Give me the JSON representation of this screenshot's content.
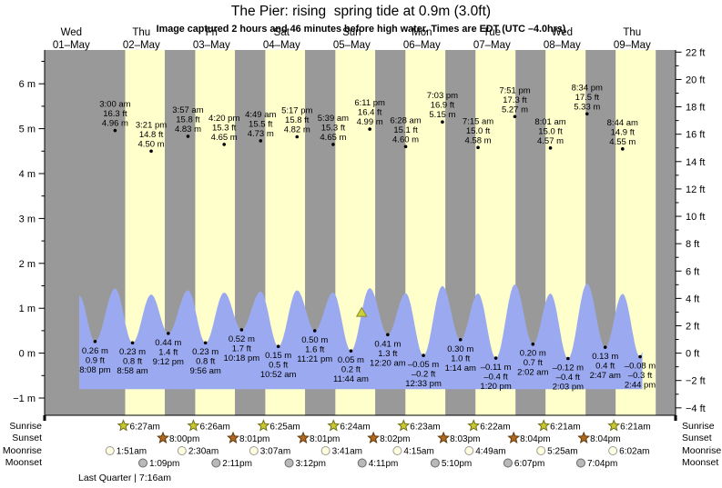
{
  "title": "The Pier: rising  spring tide at 0.9m (3.0ft)",
  "subtitle": "Image captured 2 hours and 46 minutes before high water. Times are EDT (UTC –4.0hrs)",
  "colors": {
    "day_band": "#ffffcc",
    "night_band": "#999999",
    "tide_fill": "#9baaf0",
    "day_label_red": "#ff3030",
    "sunrise_star_fill": "#c9c92f",
    "sunrise_star_stroke": "#6f6f1d",
    "sunset_star_fill": "#b0681c",
    "sunset_star_stroke": "#5f3a10",
    "moonrise_fill": "#ffffdf",
    "moonrise_stroke": "#999999",
    "moonset_fill": "#b9b9b9",
    "moonset_stroke": "#6b6b6b",
    "marker_fill": "#cdd03c",
    "marker_stroke": "#8a8a20"
  },
  "day_labels": [
    {
      "weekday": "Wed",
      "date": "01–May"
    },
    {
      "weekday": "Thu",
      "date": "02–May"
    },
    {
      "weekday": "Fri",
      "date": "03–May"
    },
    {
      "weekday": "Sat",
      "date": "04–May"
    },
    {
      "weekday": "Sun",
      "date": "05–May"
    },
    {
      "weekday": "Mon",
      "date": "06–May"
    },
    {
      "weekday": "Tue",
      "date": "07–May"
    },
    {
      "weekday": "Wed",
      "date": "08–May"
    },
    {
      "weekday": "Thu",
      "date": "09–May"
    }
  ],
  "chart_data": {
    "type": "area",
    "title": "The Pier: rising  spring tide at 0.9m (3.0ft)",
    "y_axis_left": {
      "unit": "m",
      "major_ticks": [
        -1,
        0,
        1,
        2,
        3,
        4,
        5,
        6
      ],
      "range": [
        -1.4,
        6.75
      ]
    },
    "y_axis_right": {
      "unit": "ft",
      "major_ticks": [
        -4,
        -2,
        0,
        2,
        4,
        6,
        8,
        10,
        12,
        14,
        16,
        18,
        20,
        22
      ],
      "range": [
        -4.5,
        22.2
      ]
    },
    "x_axis_days": [
      "Wed 01-May",
      "Thu 02-May",
      "Fri 03-May",
      "Sat 04-May",
      "Sun 05-May",
      "Mon 06-May",
      "Tue 07-May",
      "Wed 08-May",
      "Thu 09-May"
    ],
    "high_tides": [
      {
        "day": 1,
        "hour": 3.0,
        "time": "3:00 am",
        "ft_label": "16.3 ft",
        "m_label": "4.96 m",
        "ft": 16.3,
        "m": 4.96
      },
      {
        "day": 1,
        "hour": 15.35,
        "time": "3:21 pm",
        "ft_label": "14.8 ft",
        "m_label": "4.50 m",
        "ft": 14.8,
        "m": 4.5
      },
      {
        "day": 2,
        "hour": 3.95,
        "time": "3:57 am",
        "ft_label": "15.8 ft",
        "m_label": "4.83 m",
        "ft": 15.8,
        "m": 4.83
      },
      {
        "day": 2,
        "hour": 16.333,
        "time": "4:20 pm",
        "ft_label": "15.3 ft",
        "m_label": "4.65 m",
        "ft": 15.3,
        "m": 4.65
      },
      {
        "day": 3,
        "hour": 4.817,
        "time": "4:49 am",
        "ft_label": "15.5 ft",
        "m_label": "4.73 m",
        "ft": 15.5,
        "m": 4.73
      },
      {
        "day": 3,
        "hour": 17.283,
        "time": "5:17 pm",
        "ft_label": "15.8 ft",
        "m_label": "4.82 m",
        "ft": 15.8,
        "m": 4.82
      },
      {
        "day": 4,
        "hour": 5.65,
        "time": "5:39 am",
        "ft_label": "15.3 ft",
        "m_label": "4.65 m",
        "ft": 15.3,
        "m": 4.65
      },
      {
        "day": 4,
        "hour": 18.183,
        "time": "6:11 pm",
        "ft_label": "16.4 ft",
        "m_label": "4.99 m",
        "ft": 16.4,
        "m": 4.99
      },
      {
        "day": 5,
        "hour": 6.467,
        "time": "6:28 am",
        "ft_label": "15.1 ft",
        "m_label": "4.60 m",
        "ft": 15.1,
        "m": 4.6
      },
      {
        "day": 5,
        "hour": 19.05,
        "time": "7:03 pm",
        "ft_label": "16.9 ft",
        "m_label": "5.15 m",
        "ft": 16.9,
        "m": 5.15
      },
      {
        "day": 6,
        "hour": 7.25,
        "time": "7:15 am",
        "ft_label": "15.0 ft",
        "m_label": "4.58 m",
        "ft": 15.0,
        "m": 4.58
      },
      {
        "day": 6,
        "hour": 19.85,
        "time": "7:51 pm",
        "ft_label": "17.3 ft",
        "m_label": "5.27 m",
        "ft": 17.3,
        "m": 5.27
      },
      {
        "day": 7,
        "hour": 8.017,
        "time": "8:01 am",
        "ft_label": "15.0 ft",
        "m_label": "4.57 m",
        "ft": 15.0,
        "m": 4.57
      },
      {
        "day": 7,
        "hour": 20.567,
        "time": "8:34 pm",
        "ft_label": "17.5 ft",
        "m_label": "5.33 m",
        "ft": 17.5,
        "m": 5.33
      },
      {
        "day": 8,
        "hour": 8.733,
        "time": "8:44 am",
        "ft_label": "14.9 ft",
        "m_label": "4.55 m",
        "ft": 14.9,
        "m": 4.55
      }
    ],
    "low_tides": [
      {
        "day": 0,
        "hour": 20.133,
        "time": "8:08 pm",
        "ft_label": "0.9 ft",
        "m_label": "0.26 m",
        "ft": 0.9,
        "m": 0.26
      },
      {
        "day": 1,
        "hour": 8.967,
        "time": "8:58 am",
        "ft_label": "0.8 ft",
        "m_label": "0.23 m",
        "ft": 0.8,
        "m": 0.23
      },
      {
        "day": 1,
        "hour": 21.2,
        "time": "9:12 pm",
        "ft_label": "1.4 ft",
        "m_label": "0.44 m",
        "ft": 1.4,
        "m": 0.44
      },
      {
        "day": 2,
        "hour": 9.933,
        "time": "9:56 am",
        "ft_label": "0.8 ft",
        "m_label": "0.23 m",
        "ft": 0.8,
        "m": 0.23
      },
      {
        "day": 2,
        "hour": 22.3,
        "time": "10:18 pm",
        "ft_label": "1.7 ft",
        "m_label": "0.52 m",
        "ft": 1.7,
        "m": 0.52
      },
      {
        "day": 3,
        "hour": 10.867,
        "time": "10:52 am",
        "ft_label": "0.5 ft",
        "m_label": "0.15 m",
        "ft": 0.5,
        "m": 0.15
      },
      {
        "day": 3,
        "hour": 23.35,
        "time": "11:21 pm",
        "ft_label": "1.6 ft",
        "m_label": "0.50 m",
        "ft": 1.6,
        "m": 0.5
      },
      {
        "day": 4,
        "hour": 11.733,
        "time": "11:44 am",
        "ft_label": "0.2 ft",
        "m_label": "0.05 m",
        "ft": 0.2,
        "m": 0.05
      },
      {
        "day": 5,
        "hour": 0.333,
        "time": "12:20 am",
        "ft_label": "1.3 ft",
        "m_label": "0.41 m",
        "ft": 1.3,
        "m": 0.41
      },
      {
        "day": 5,
        "hour": 12.55,
        "time": "12:33 pm",
        "ft_label": "–0.2 ft",
        "m_label": "–0.05 m",
        "ft": -0.2,
        "m": -0.05
      },
      {
        "day": 6,
        "hour": 1.233,
        "time": "1:14 am",
        "ft_label": "1.0 ft",
        "m_label": "0.30 m",
        "ft": 1.0,
        "m": 0.3
      },
      {
        "day": 6,
        "hour": 13.333,
        "time": "1:20 pm",
        "ft_label": "–0.4 ft",
        "m_label": "–0.11 m",
        "ft": -0.4,
        "m": -0.11
      },
      {
        "day": 7,
        "hour": 2.033,
        "time": "2:02 am",
        "ft_label": "0.7 ft",
        "m_label": "0.20 m",
        "ft": 0.7,
        "m": 0.2
      },
      {
        "day": 7,
        "hour": 14.05,
        "time": "2:03 pm",
        "ft_label": "–0.4 ft",
        "m_label": "–0.12 m",
        "ft": -0.4,
        "m": -0.12
      },
      {
        "day": 8,
        "hour": 2.783,
        "time": "2:47 am",
        "ft_label": "0.4 ft",
        "m_label": "0.13 m",
        "ft": 0.4,
        "m": 0.13
      },
      {
        "day": 8,
        "hour": 14.733,
        "time": "2:44 pm",
        "ft_label": "–0.3 ft",
        "m_label": "–0.08 m",
        "ft": -0.3,
        "m": -0.08
      }
    ],
    "daylight_bands": [
      {
        "day": 1,
        "from": 6.45,
        "to": 20.0
      },
      {
        "day": 2,
        "from": 6.433,
        "to": 20.017
      },
      {
        "day": 3,
        "from": 6.417,
        "to": 20.017
      },
      {
        "day": 4,
        "from": 6.4,
        "to": 20.033
      },
      {
        "day": 5,
        "from": 6.383,
        "to": 20.05
      },
      {
        "day": 6,
        "from": 6.367,
        "to": 20.067
      },
      {
        "day": 7,
        "from": 6.35,
        "to": 20.067
      },
      {
        "day": 8,
        "from": 6.35,
        "to": 20.083
      }
    ],
    "current_marker": {
      "day": 4,
      "hour": 15.42,
      "level_m": 0.9
    }
  },
  "sun_moon": {
    "rows": [
      {
        "label": "Sunrise",
        "icon": "sunrise-star",
        "events": [
          {
            "day": 1,
            "hour": 6.45,
            "time": "6:27am"
          },
          {
            "day": 2,
            "hour": 6.433,
            "time": "6:26am"
          },
          {
            "day": 3,
            "hour": 6.417,
            "time": "6:25am"
          },
          {
            "day": 4,
            "hour": 6.4,
            "time": "6:24am"
          },
          {
            "day": 5,
            "hour": 6.383,
            "time": "6:23am"
          },
          {
            "day": 6,
            "hour": 6.367,
            "time": "6:22am"
          },
          {
            "day": 7,
            "hour": 6.35,
            "time": "6:21am"
          },
          {
            "day": 8,
            "hour": 6.35,
            "time": "6:21am"
          }
        ]
      },
      {
        "label": "Sunset",
        "icon": "sunset-star",
        "events": [
          {
            "day": 1,
            "hour": 20.0,
            "time": "8:00pm"
          },
          {
            "day": 2,
            "hour": 20.017,
            "time": "8:01pm"
          },
          {
            "day": 3,
            "hour": 20.017,
            "time": "8:01pm"
          },
          {
            "day": 4,
            "hour": 20.033,
            "time": "8:02pm"
          },
          {
            "day": 5,
            "hour": 20.05,
            "time": "8:03pm"
          },
          {
            "day": 6,
            "hour": 20.067,
            "time": "8:04pm"
          },
          {
            "day": 7,
            "hour": 20.067,
            "time": "8:04pm"
          }
        ]
      },
      {
        "label": "Moonrise",
        "icon": "moonrise-circle",
        "events": [
          {
            "day": 1,
            "hour": 1.85,
            "time": "1:51am"
          },
          {
            "day": 2,
            "hour": 2.5,
            "time": "2:30am"
          },
          {
            "day": 3,
            "hour": 3.117,
            "time": "3:07am"
          },
          {
            "day": 4,
            "hour": 3.683,
            "time": "3:41am"
          },
          {
            "day": 5,
            "hour": 4.25,
            "time": "4:15am"
          },
          {
            "day": 6,
            "hour": 4.817,
            "time": "4:49am"
          },
          {
            "day": 7,
            "hour": 5.417,
            "time": "5:25am"
          },
          {
            "day": 8,
            "hour": 6.033,
            "time": "6:02am"
          }
        ]
      },
      {
        "label": "Moonset",
        "icon": "moonset-circle",
        "events": [
          {
            "day": 1,
            "hour": 13.15,
            "time": "1:09pm"
          },
          {
            "day": 2,
            "hour": 14.183,
            "time": "2:11pm"
          },
          {
            "day": 3,
            "hour": 15.2,
            "time": "3:12pm"
          },
          {
            "day": 4,
            "hour": 16.183,
            "time": "4:11pm"
          },
          {
            "day": 5,
            "hour": 17.167,
            "time": "5:10pm"
          },
          {
            "day": 6,
            "hour": 18.117,
            "time": "6:07pm"
          },
          {
            "day": 7,
            "hour": 19.067,
            "time": "7:04pm"
          }
        ]
      }
    ],
    "footnote": "Last Quarter | 7:16am"
  }
}
